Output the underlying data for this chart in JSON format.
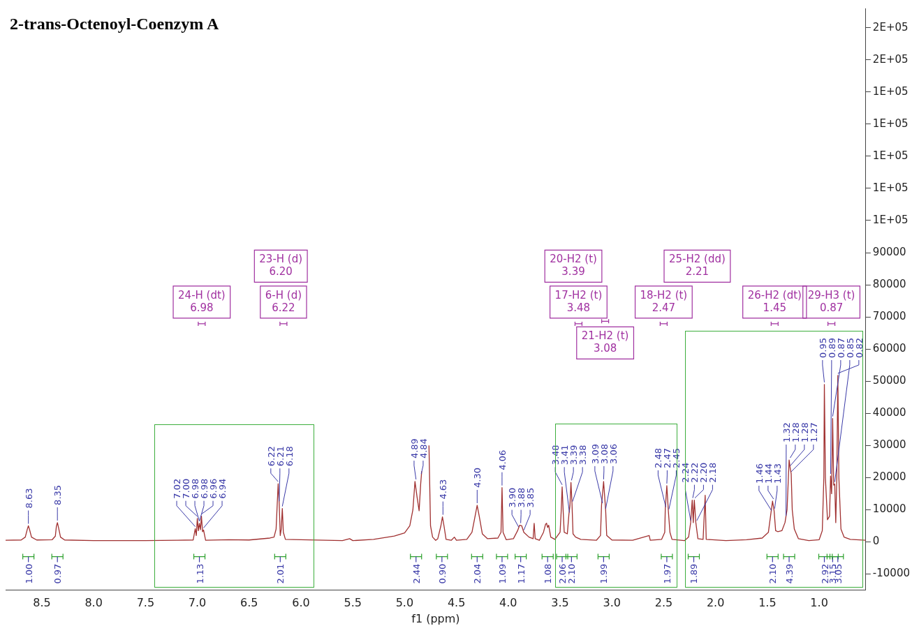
{
  "chart_data": {
    "type": "line",
    "title": "2-trans-Octenoyl-Coenzym A",
    "xlabel": "f1 (ppm)",
    "xlim": [
      8.85,
      0.55
    ],
    "xticks": [
      8.5,
      {
        "value": 8,
        "label": "8.0"
      },
      7.5,
      {
        "value": 7,
        "label": "7.0"
      },
      6.5,
      {
        "value": 6,
        "label": "6.0"
      },
      5.5,
      {
        "value": 5,
        "label": "5.0"
      },
      4.5,
      {
        "value": 4,
        "label": "4.0"
      },
      3.5,
      {
        "value": 3,
        "label": "3.0"
      },
      2.5,
      {
        "value": 2,
        "label": "2.0"
      },
      1.5,
      {
        "value": 1,
        "label": "1.0"
      }
    ],
    "ylim": [
      -15000,
      166000
    ],
    "yticks": [
      -10000,
      0,
      10000,
      20000,
      30000,
      40000,
      50000,
      60000,
      70000,
      80000,
      90000,
      {
        "value": 100000,
        "label": "1E+05"
      },
      {
        "value": 110000,
        "label": "1E+05"
      },
      {
        "value": 120000,
        "label": "1E+05"
      },
      {
        "value": 130000,
        "label": "1E+05"
      },
      {
        "value": 140000,
        "label": "1E+05"
      },
      {
        "value": 150000,
        "label": "2E+05"
      },
      {
        "value": 160000,
        "label": "2E+05"
      }
    ],
    "series": [
      {
        "color": "#a03030",
        "x": [
          8.85,
          8.7,
          8.66,
          8.64,
          8.63,
          8.62,
          8.6,
          8.55,
          8.4,
          8.37,
          8.36,
          8.35,
          8.34,
          8.32,
          8.28,
          8.0,
          7.5,
          7.2,
          7.04,
          7.02,
          7.01,
          7.0,
          6.99,
          6.98,
          6.97,
          6.96,
          6.95,
          6.94,
          6.92,
          6.7,
          6.5,
          6.3,
          6.26,
          6.24,
          6.22,
          6.21,
          6.2,
          6.19,
          6.18,
          6.17,
          6.15,
          6.0,
          5.6,
          5.53,
          5.5,
          5.3,
          5.1,
          5.0,
          4.95,
          4.92,
          4.9,
          4.88,
          4.86,
          4.845,
          4.835,
          4.82,
          4.78,
          4.765,
          4.75,
          4.73,
          4.7,
          4.68,
          4.65,
          4.635,
          4.62,
          4.6,
          4.55,
          4.52,
          4.5,
          4.4,
          4.35,
          4.32,
          4.3,
          4.28,
          4.25,
          4.2,
          4.1,
          4.07,
          4.06,
          4.05,
          4.02,
          3.95,
          3.91,
          3.89,
          3.87,
          3.85,
          3.8,
          3.76,
          3.75,
          3.74,
          3.7,
          3.66,
          3.64,
          3.63,
          3.62,
          3.61,
          3.59,
          3.55,
          3.5,
          3.49,
          3.48,
          3.47,
          3.46,
          3.43,
          3.415,
          3.405,
          3.395,
          3.385,
          3.375,
          3.35,
          3.3,
          3.15,
          3.11,
          3.1,
          3.08,
          3.06,
          3.05,
          3.0,
          2.8,
          2.64,
          2.63,
          2.52,
          2.49,
          2.485,
          2.47,
          2.455,
          2.44,
          2.42,
          2.3,
          2.26,
          2.24,
          2.225,
          2.215,
          2.205,
          2.19,
          2.17,
          2.12,
          2.1,
          2.09,
          1.9,
          1.7,
          1.55,
          1.49,
          1.465,
          1.45,
          1.435,
          1.42,
          1.4,
          1.36,
          1.33,
          1.31,
          1.29,
          1.28,
          1.27,
          1.26,
          1.24,
          1.2,
          1.1,
          1.0,
          0.97,
          0.955,
          0.95,
          0.94,
          0.92,
          0.9,
          0.89,
          0.88,
          0.87,
          0.86,
          0.85,
          0.84,
          0.83,
          0.82,
          0.81,
          0.79,
          0.76,
          0.7,
          0.55
        ],
        "values": [
          500,
          600,
          1500,
          4000,
          5000,
          4000,
          1500,
          600,
          700,
          1800,
          4800,
          6000,
          4600,
          1500,
          600,
          400,
          400,
          500,
          600,
          4100,
          2000,
          7300,
          3500,
          5800,
          3800,
          8000,
          3200,
          3700,
          500,
          700,
          600,
          1200,
          1500,
          4000,
          18100,
          12000,
          2000,
          4000,
          10400,
          3000,
          800,
          700,
          400,
          1000,
          400,
          800,
          1800,
          2800,
          5000,
          10000,
          18800,
          14000,
          9700,
          18000,
          22000,
          null,
          null,
          30000,
          5000,
          1500,
          500,
          1000,
          5000,
          7800,
          5000,
          800,
          500,
          1500,
          500,
          800,
          3000,
          8000,
          11400,
          8000,
          2500,
          1000,
          1200,
          3000,
          16900,
          3000,
          700,
          1000,
          3500,
          5200,
          5000,
          3000,
          1500,
          1000,
          5800,
          1000,
          500,
          3000,
          5500,
          5800,
          4500,
          5200,
          1500,
          800,
          3000,
          9000,
          17100,
          9500,
          3000,
          2500,
          8500,
          11200,
          18500,
          11900,
          2500,
          1500,
          800,
          500,
          2000,
          11400,
          18800,
          9700,
          2000,
          600,
          500,
          2000,
          500,
          800,
          3000,
          10200,
          17500,
          9500,
          3000,
          800,
          400,
          1500,
          6000,
          13000,
          6000,
          13000,
          6000,
          1000,
          800,
          14500,
          800,
          400,
          700,
          1200,
          3000,
          9100,
          12700,
          9700,
          3500,
          3200,
          3500,
          6000,
          10000,
          25500,
          23000,
          21200,
          10000,
          4000,
          1000,
          400,
          700,
          3500,
          20000,
          49000,
          20000,
          6900,
          8000,
          20500,
          15000,
          38400,
          17700,
          18000,
          6000,
          20000,
          51800,
          20000,
          4000,
          1500,
          800,
          500
        ]
      }
    ],
    "annotations": [
      {
        "text": "8.63",
        "x": 8.63,
        "y": 5000
      },
      {
        "text": "8.35",
        "x": 8.35,
        "y": 6000
      },
      {
        "text": "7.02",
        "x": 7.02,
        "y": 4100
      },
      {
        "text": "7.00",
        "x": 7.0,
        "y": 7300
      },
      {
        "text": "6.98",
        "x": 6.98,
        "y": 5800
      },
      {
        "text": "6.98",
        "x": 6.98,
        "y": 5800
      },
      {
        "text": "6.96",
        "x": 6.96,
        "y": 8000
      },
      {
        "text": "6.94",
        "x": 6.94,
        "y": 3700
      },
      {
        "text": "6.22",
        "x": 6.22,
        "y": 18100
      },
      {
        "text": "6.21",
        "x": 6.21,
        "y": 12000
      },
      {
        "text": "6.18",
        "x": 6.18,
        "y": 10400
      },
      {
        "text": "4.89",
        "x": 4.89,
        "y": 18800
      },
      {
        "text": "4.84",
        "x": 4.84,
        "y": 20500
      },
      {
        "text": "4.63",
        "x": 4.63,
        "y": 7800
      },
      {
        "text": "4.30",
        "x": 4.3,
        "y": 11400
      },
      {
        "text": "4.06",
        "x": 4.06,
        "y": 16900
      },
      {
        "text": "3.90",
        "x": 3.9,
        "y": 4000
      },
      {
        "text": "3.88",
        "x": 3.88,
        "y": 5200
      },
      {
        "text": "3.85",
        "x": 3.85,
        "y": 3000
      },
      {
        "text": "3.48",
        "x": 3.48,
        "y": 17100
      },
      {
        "text": "3.41",
        "x": 3.41,
        "y": 8500
      },
      {
        "text": "3.39",
        "x": 3.39,
        "y": 18500
      },
      {
        "text": "3.38",
        "x": 3.38,
        "y": 11900
      },
      {
        "text": "3.09",
        "x": 3.09,
        "y": 11400
      },
      {
        "text": "3.08",
        "x": 3.08,
        "y": 18800
      },
      {
        "text": "3.06",
        "x": 3.06,
        "y": 9700
      },
      {
        "text": "2.48",
        "x": 2.48,
        "y": 10200
      },
      {
        "text": "2.47",
        "x": 2.47,
        "y": 17500
      },
      {
        "text": "2.45",
        "x": 2.45,
        "y": 9500
      },
      {
        "text": "2.24",
        "x": 2.24,
        "y": 6000
      },
      {
        "text": "2.22",
        "x": 2.22,
        "y": 13000
      },
      {
        "text": "2.20",
        "x": 2.2,
        "y": 13000
      },
      {
        "text": "2.18",
        "x": 2.18,
        "y": 6000
      },
      {
        "text": "1.46",
        "x": 1.46,
        "y": 9100
      },
      {
        "text": "1.44",
        "x": 1.44,
        "y": 12700
      },
      {
        "text": "1.43",
        "x": 1.43,
        "y": 9700
      },
      {
        "text": "1.32",
        "x": 1.32,
        "y": 7500
      },
      {
        "text": "1.28",
        "x": 1.28,
        "y": 25500
      },
      {
        "text": "1.28",
        "x": 1.28,
        "y": 23000
      },
      {
        "text": "1.27",
        "x": 1.27,
        "y": 21200
      },
      {
        "text": "0.95",
        "x": 0.95,
        "y": 49000
      },
      {
        "text": "0.89",
        "x": 0.89,
        "y": 20500
      },
      {
        "text": "0.87",
        "x": 0.87,
        "y": 38400
      },
      {
        "text": "0.85",
        "x": 0.85,
        "y": 18000
      },
      {
        "text": "0.82",
        "x": 0.82,
        "y": 51800
      },
      "24-H (dt)\n6.98",
      "6-H (d)\n6.22",
      "23-H (d)\n6.20",
      "17-H2 (t)\n3.48",
      "20-H2 (t)\n3.39",
      "21-H2 (t)\n3.08",
      "18-H2 (t)\n2.47",
      "25-H2 (dd)\n2.21",
      "26-H2 (dt)\n1.45",
      "29-H3 (t)\n0.87",
      {
        "text": "1.00",
        "x": 8.63
      },
      {
        "text": "0.97",
        "x": 8.35
      },
      {
        "text": "1.13",
        "x": 6.98
      },
      {
        "text": "2.01",
        "x": 6.2
      },
      {
        "text": "2.44",
        "x": 4.89
      },
      {
        "text": "0.90",
        "x": 4.64
      },
      {
        "text": "2.04",
        "x": 4.3
      },
      {
        "text": "1.09",
        "x": 4.06
      },
      {
        "text": "1.17",
        "x": 3.88
      },
      {
        "text": "1.08",
        "x": 3.62
      },
      {
        "text": "2.06",
        "x": 3.48
      },
      {
        "text": "2.10",
        "x": 3.39
      },
      {
        "text": "1.99",
        "x": 3.08
      },
      {
        "text": "1.97",
        "x": 2.47
      },
      {
        "text": "1.89",
        "x": 2.21
      },
      {
        "text": "2.10",
        "x": 1.45
      },
      {
        "text": "4.39",
        "x": 1.29
      },
      {
        "text": "2.92",
        "x": 0.95
      },
      {
        "text": "3.15",
        "x": 0.87
      },
      {
        "text": "3.05",
        "x": 0.82
      }
    ]
  }
}
